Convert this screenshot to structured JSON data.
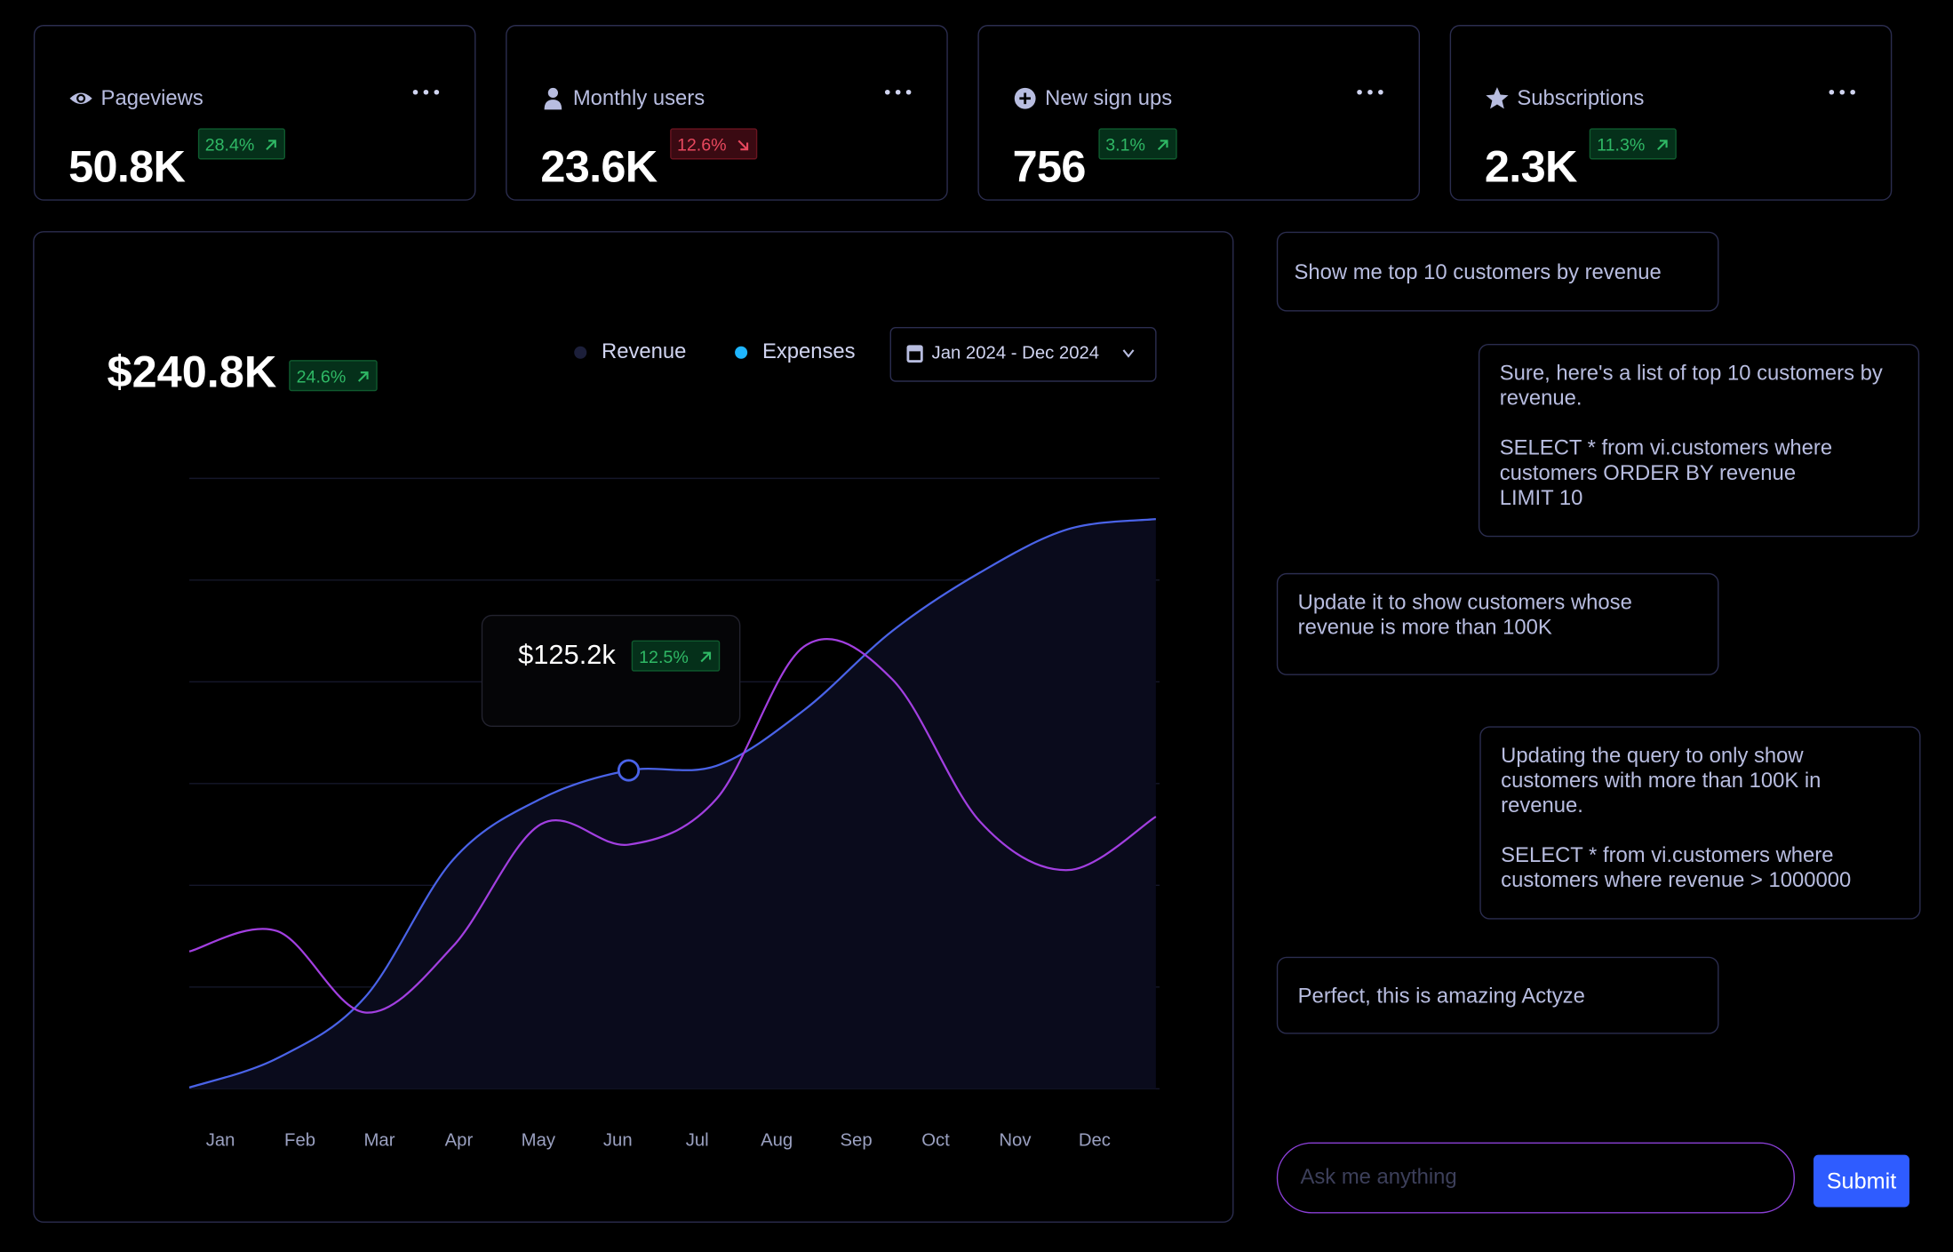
{
  "stat_cards": [
    {
      "title": "Pageviews",
      "value": "50.8K",
      "change": "28.4%",
      "trend": "up"
    },
    {
      "title": "Monthly users",
      "value": "23.6K",
      "change": "12.6%",
      "trend": "down"
    },
    {
      "title": "New sign ups",
      "value": "756",
      "change": "3.1%",
      "trend": "up"
    },
    {
      "title": "Subscriptions",
      "value": "2.3K",
      "change": "11.3%",
      "trend": "up"
    }
  ],
  "chart_data": {
    "type": "line",
    "title": "$240.8K",
    "change": "24.6%",
    "date_range": "Jan 2024 - Dec 2024",
    "categories": [
      "Jan",
      "Feb",
      "Mar",
      "Apr",
      "May",
      "Jun",
      "Jul",
      "Aug",
      "Sep",
      "Oct",
      "Nov",
      "Dec"
    ],
    "series": [
      {
        "name": "Revenue",
        "color": "#4a63e8",
        "legend_color": "#1c1f3a",
        "values": [
          0.5,
          12,
          36,
          90,
          114,
          125.2,
          127,
          149,
          180,
          203,
          220,
          224
        ]
      },
      {
        "name": "Expenses",
        "color": "#a23fe0",
        "legend_color": "#1fb6ff",
        "values": [
          54,
          62,
          30,
          56,
          104,
          96,
          114,
          174,
          161,
          105,
          86,
          107
        ]
      }
    ],
    "ylim": [
      0,
      240
    ],
    "grid": true,
    "tooltip": {
      "value": "$125.2k",
      "change": "12.5%"
    }
  },
  "chat": {
    "messages": [
      {
        "role": "user",
        "text": "Show me top 10 customers by revenue"
      },
      {
        "role": "assistant",
        "text": "Sure, here's a list of top 10 customers by revenue.\n\nSELECT * from vi.customers where customers ORDER BY revenue\nLIMIT 10"
      },
      {
        "role": "user",
        "text": "Update it to show customers whose revenue is more than 100K"
      },
      {
        "role": "assistant",
        "text": "Updating the query to only show customers with more than 100K in revenue.\n\nSELECT * from vi.customers where customers where revenue > 1000000"
      },
      {
        "role": "user",
        "text": "Perfect, this is amazing Actyze"
      }
    ],
    "input_placeholder": "Ask me anything",
    "submit": "Submit"
  }
}
